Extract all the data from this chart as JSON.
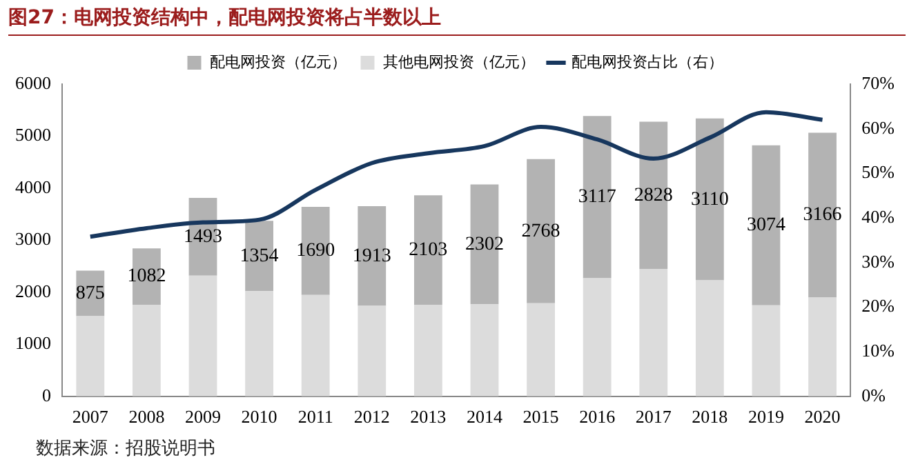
{
  "chart_data": {
    "type": "bar",
    "title": "图27：电网投资结构中，配电网投资将占半数以上",
    "categories": [
      "2007",
      "2008",
      "2009",
      "2010",
      "2011",
      "2012",
      "2013",
      "2014",
      "2015",
      "2016",
      "2017",
      "2018",
      "2019",
      "2020"
    ],
    "stacked": true,
    "series": [
      {
        "name": "其他电网投资（亿元）",
        "color": "#dcdcdc",
        "values": [
          1540,
          1760,
          2320,
          2020,
          1950,
          1740,
          1760,
          1770,
          1790,
          2270,
          2450,
          2230,
          1750,
          1900
        ]
      },
      {
        "name": "配电网投资（亿元）",
        "color": "#b3b3b3",
        "values": [
          875,
          1082,
          1493,
          1354,
          1690,
          1913,
          2103,
          2302,
          2768,
          3117,
          2828,
          3110,
          3074,
          3166
        ],
        "value_labels": [
          "875",
          "1082",
          "1493",
          "1354",
          "1690",
          "1913",
          "2103",
          "2302",
          "2768",
          "3117",
          "2828",
          "3110",
          "3074",
          "3166"
        ]
      },
      {
        "name": "配电网投资占比（右）",
        "type": "line",
        "axis": "y2",
        "color": "#17375e",
        "values": [
          35.8,
          37.7,
          39.0,
          39.6,
          46.3,
          52.3,
          54.5,
          56.1,
          60.4,
          57.6,
          53.3,
          58.0,
          63.7,
          62.0
        ]
      }
    ],
    "ylim": [
      0,
      6000
    ],
    "yticks": [
      0,
      1000,
      2000,
      3000,
      4000,
      5000,
      6000
    ],
    "y2lim": [
      0,
      70
    ],
    "y2ticks": [
      {
        "value": 0,
        "label": "0%"
      },
      {
        "value": 10,
        "label": "10%"
      },
      {
        "value": 20,
        "label": "20%"
      },
      {
        "value": 30,
        "label": "30%"
      },
      {
        "value": 40,
        "label": "40%"
      },
      {
        "value": 50,
        "label": "50%"
      },
      {
        "value": 60,
        "label": "60%"
      },
      {
        "value": 70,
        "label": "70%"
      }
    ],
    "grid": false,
    "legend": "top",
    "marker": "none",
    "line_style": "solid",
    "annotations": [
      "数据来源：招股说明书"
    ]
  }
}
